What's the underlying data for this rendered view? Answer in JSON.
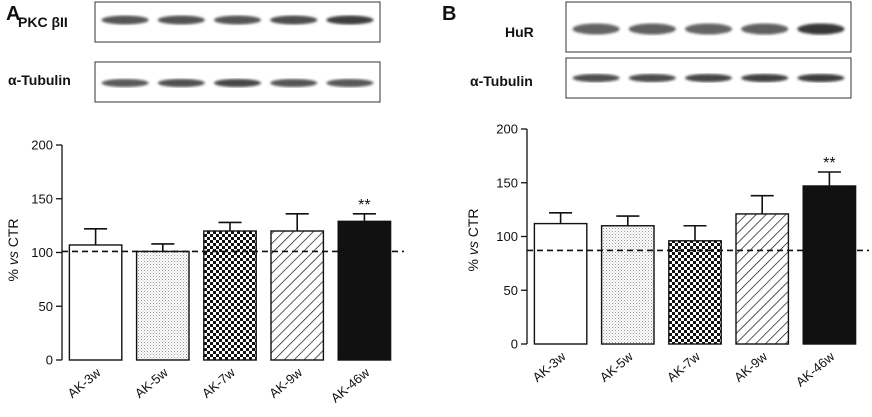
{
  "panels": [
    {
      "letter": "A",
      "blots": [
        {
          "label": "PKC βII",
          "intensities": [
            0.7,
            0.72,
            0.7,
            0.78,
            0.95
          ]
        },
        {
          "label": "α-Tubulin",
          "intensities": [
            0.65,
            0.75,
            0.85,
            0.7,
            0.68
          ]
        }
      ]
    },
    {
      "letter": "B",
      "blots": [
        {
          "label": "HuR",
          "intensities": [
            0.55,
            0.6,
            0.55,
            0.6,
            0.98
          ]
        },
        {
          "label": "α-Tubulin",
          "intensities": [
            0.75,
            0.78,
            0.85,
            0.88,
            0.92
          ]
        }
      ]
    }
  ],
  "chart_data": [
    {
      "type": "bar",
      "panel": "A",
      "categories": [
        "AK-3w",
        "AK-5w",
        "AK-7w",
        "AK-9w",
        "AK-46w"
      ],
      "values": [
        107,
        101,
        120,
        120,
        129
      ],
      "errors": [
        15,
        7,
        8,
        16,
        7
      ],
      "patterns": [
        "white",
        "dots",
        "checker",
        "hatch",
        "black"
      ],
      "ylabel_prefix": "% ",
      "ylabel_italic": "vs",
      "ylabel_suffix": " CTR",
      "ylim": [
        0,
        200
      ],
      "yticks": [
        "0",
        "50",
        "100",
        "150",
        "200"
      ],
      "reference_line": 101,
      "significance": [
        "",
        "",
        "",
        "",
        "**"
      ]
    },
    {
      "type": "bar",
      "panel": "B",
      "categories": [
        "AK-3w",
        "AK-5w",
        "AK-7w",
        "AK-9w",
        "AK-46w"
      ],
      "values": [
        112,
        110,
        96,
        121,
        147
      ],
      "errors": [
        10,
        9,
        14,
        17,
        13
      ],
      "patterns": [
        "white",
        "dots",
        "checker",
        "hatch",
        "black"
      ],
      "ylabel_prefix": "% ",
      "ylabel_italic": "vs",
      "ylabel_suffix": " CTR",
      "ylim": [
        0,
        200
      ],
      "yticks": [
        "0",
        "50",
        "100",
        "150",
        "200"
      ],
      "reference_line": 87,
      "significance": [
        "",
        "",
        "",
        "",
        "**"
      ]
    }
  ]
}
